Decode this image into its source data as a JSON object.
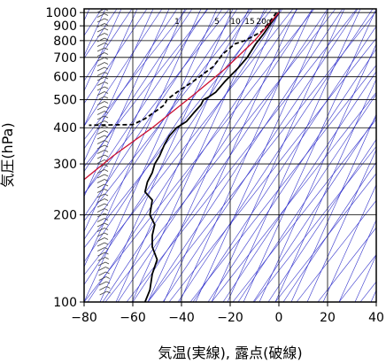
{
  "chart_data": {
    "type": "line",
    "title": "",
    "xlabel": "気温(実線), 露点(破線)",
    "ylabel": "気圧(hPa)",
    "xlim": [
      -80,
      40
    ],
    "ylim_hpa": [
      1030,
      100
    ],
    "y_scale": "log",
    "x_ticks": [
      -80,
      -60,
      -40,
      -20,
      0,
      20,
      40
    ],
    "x_tick_labels": [
      "−80",
      "−60",
      "−40",
      "−20",
      "0",
      "20",
      "40"
    ],
    "y_ticks": [
      100,
      200,
      300,
      400,
      500,
      600,
      700,
      800,
      900,
      1000
    ],
    "y_tick_labels": [
      "100",
      "200",
      "300",
      "400",
      "500",
      "600",
      "700",
      "800",
      "900",
      "1000"
    ],
    "grid": true,
    "mixing_ratio_labels": [
      "1",
      "5",
      "10",
      "15",
      "20g"
    ],
    "colors": {
      "temperature": "#000000",
      "dewpoint": "#000000",
      "parcel": "#cc1133",
      "skew_lines": "#3333cc",
      "grid": "#000000",
      "wind_barb": "#444444"
    },
    "series": [
      {
        "kind": "temperature",
        "style": "solid",
        "points": [
          [
            0,
            1000
          ],
          [
            -3,
            925
          ],
          [
            -6,
            850
          ],
          [
            -9.5,
            780
          ],
          [
            -13,
            700
          ],
          [
            -17,
            640
          ],
          [
            -22,
            580
          ],
          [
            -26,
            530
          ],
          [
            -29,
            510
          ],
          [
            -31,
            500
          ],
          [
            -32,
            480
          ],
          [
            -35,
            450
          ],
          [
            -38,
            420
          ],
          [
            -42,
            400
          ],
          [
            -45,
            375
          ],
          [
            -47,
            350
          ],
          [
            -49,
            320
          ],
          [
            -51,
            300
          ],
          [
            -52,
            280
          ],
          [
            -54,
            260
          ],
          [
            -55,
            240
          ],
          [
            -52,
            225
          ],
          [
            -53,
            200
          ],
          [
            -51,
            185
          ],
          [
            -52,
            170
          ],
          [
            -52,
            155
          ],
          [
            -50,
            140
          ],
          [
            -52,
            125
          ],
          [
            -53,
            110
          ],
          [
            -55,
            100
          ]
        ]
      },
      {
        "kind": "dewpoint",
        "style": "dashed",
        "points": [
          [
            -1,
            1000
          ],
          [
            -4,
            925
          ],
          [
            -7,
            860
          ],
          [
            -14,
            800
          ],
          [
            -18,
            780
          ],
          [
            -23,
            720
          ],
          [
            -27,
            650
          ],
          [
            -35,
            580
          ],
          [
            -42,
            530
          ],
          [
            -46,
            500
          ],
          [
            -47,
            480
          ],
          [
            -50,
            460
          ],
          [
            -55,
            430
          ],
          [
            -60,
            410
          ],
          [
            -78,
            408
          ]
        ]
      },
      {
        "kind": "parcel",
        "style": "solid",
        "points": [
          [
            0,
            1000
          ],
          [
            -10,
            800
          ],
          [
            -22,
            640
          ],
          [
            -35,
            520
          ],
          [
            -52,
            400
          ],
          [
            -68,
            320
          ],
          [
            -80,
            265
          ]
        ]
      }
    ]
  }
}
